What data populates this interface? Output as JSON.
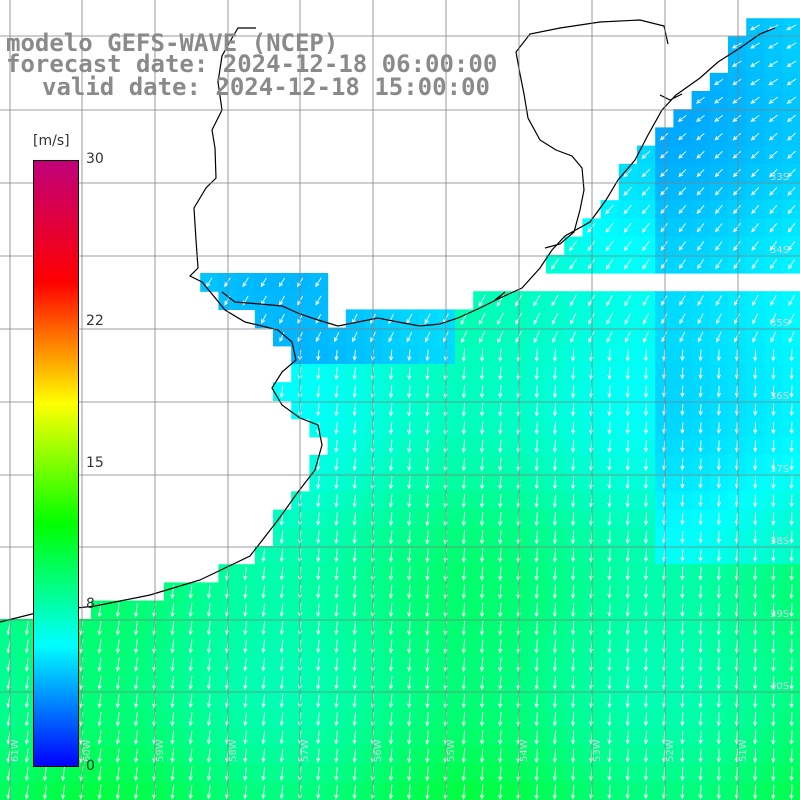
{
  "title": {
    "line1": "modelo GEFS-WAVE (NCEP)",
    "line2": "forecast date: 2024-12-18 06:00:00",
    "line3": "valid date: 2024-12-18 15:00:00"
  },
  "colorbar": {
    "unit": "[m/s]",
    "min": 0,
    "max": 30,
    "ticks": [
      "30",
      "22",
      "15",
      "8",
      "0"
    ],
    "tick_values": [
      30,
      22,
      15,
      8,
      0
    ],
    "colors": [
      "#0000ff",
      "#00ffff",
      "#00ff00",
      "#ffff00",
      "#ff0000",
      "#c0007a"
    ]
  },
  "field": {
    "variable": "wind speed and direction",
    "dominant_direction": "southward / south-southwest",
    "typical_range_ms": [
      5,
      11
    ]
  },
  "grid_labels": {
    "latitude": [
      "33S",
      "34S",
      "35S",
      "36S",
      "37S",
      "38S",
      "39S",
      "40S"
    ],
    "longitude": [
      "61W",
      "60W",
      "59W",
      "58W",
      "57W",
      "56W",
      "55W",
      "54W",
      "53W",
      "52W",
      "51W"
    ]
  },
  "colors": {
    "land": "#ffffff",
    "coastline": "#000000",
    "grid": "#7f7f7f",
    "arrows": "#ffffff",
    "title_text": "#8a8a8a"
  }
}
